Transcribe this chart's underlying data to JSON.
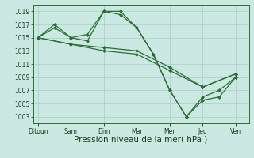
{
  "background_color": "#cce8e2",
  "grid_color": "#aacec8",
  "line_color": "#2a6e35",
  "xlabel": "Pression niveau de la mer( hPa )",
  "xlabel_fontsize": 7.5,
  "ylim": [
    1002,
    1020
  ],
  "yticks": [
    1003,
    1005,
    1007,
    1009,
    1011,
    1013,
    1015,
    1017,
    1019
  ],
  "xtick_labels": [
    "Ditoun",
    "Sam",
    "Dim",
    "Mar",
    "Mer",
    "Jeu",
    "Ven"
  ],
  "xtick_positions": [
    0,
    2,
    4,
    6,
    8,
    10,
    12
  ],
  "xlim": [
    -0.3,
    12.8
  ],
  "series": [
    {
      "x": [
        0,
        1,
        2,
        3,
        4,
        5,
        6,
        7,
        8,
        9,
        10,
        11,
        12
      ],
      "y": [
        1015,
        1017,
        1015,
        1015.5,
        1019,
        1019,
        1016.5,
        1012.5,
        1007,
        1003,
        1006,
        1007,
        1009
      ]
    },
    {
      "x": [
        0,
        1,
        2,
        3,
        4,
        5,
        6,
        7,
        8,
        9,
        10,
        11,
        12
      ],
      "y": [
        1015,
        1016.5,
        1015,
        1014.5,
        1019,
        1018.5,
        1016.5,
        1012.5,
        1007,
        1003,
        1005.5,
        1006,
        1009
      ]
    },
    {
      "x": [
        0,
        2,
        4,
        6,
        8,
        10,
        12
      ],
      "y": [
        1015,
        1014,
        1013.5,
        1013,
        1010.5,
        1007.5,
        1009.5
      ]
    },
    {
      "x": [
        0,
        2,
        4,
        6,
        8,
        10,
        12
      ],
      "y": [
        1015,
        1014,
        1013,
        1012.5,
        1010,
        1007.5,
        1009.5
      ]
    }
  ]
}
